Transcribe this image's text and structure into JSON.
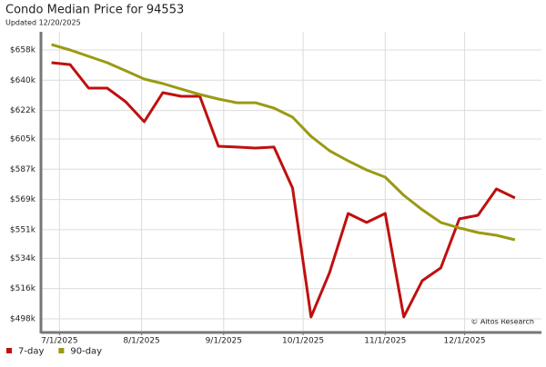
{
  "chart_data": {
    "type": "line",
    "title": "Condo Median Price for 94553",
    "subtitle": "Updated 12/20/2025",
    "annotation": "© Altos Research",
    "x": [
      "2025-06-28",
      "2025-07-05",
      "2025-07-12",
      "2025-07-19",
      "2025-07-26",
      "2025-08-02",
      "2025-08-09",
      "2025-08-16",
      "2025-08-23",
      "2025-08-30",
      "2025-09-06",
      "2025-09-13",
      "2025-09-20",
      "2025-09-27",
      "2025-10-04",
      "2025-10-11",
      "2025-10-18",
      "2025-10-25",
      "2025-11-01",
      "2025-11-08",
      "2025-11-15",
      "2025-11-22",
      "2025-11-29",
      "2025-12-06",
      "2025-12-13",
      "2025-12-20"
    ],
    "series": [
      {
        "name": "7-day",
        "color": "#bf1010",
        "values": [
          650.4,
          649.3,
          635.3,
          635.3,
          627.2,
          615.3,
          632.6,
          630.4,
          630.4,
          600.7,
          600.2,
          599.6,
          600.2,
          575.8,
          499.1,
          525.6,
          560.7,
          555.3,
          560.7,
          499.1,
          520.7,
          528.3,
          557.5,
          559.6,
          575.3,
          569.9
        ]
      },
      {
        "name": "90-day",
        "color": "#9a9a14",
        "values": [
          661.2,
          658,
          654.2,
          650.4,
          645.6,
          640.7,
          638,
          634.7,
          631.5,
          628.8,
          626.6,
          626.6,
          623.4,
          618,
          606.6,
          598,
          592,
          586.6,
          582.3,
          571.5,
          562.9,
          555.3,
          552.1,
          549.3,
          547.7,
          545
        ]
      }
    ],
    "xlim": [
      "2025-06-24",
      "2025-12-30"
    ],
    "xticks": [
      {
        "value": "2025-07-01",
        "label": "7/1/2025"
      },
      {
        "value": "2025-08-01",
        "label": "8/1/2025"
      },
      {
        "value": "2025-09-01",
        "label": "9/1/2025"
      },
      {
        "value": "2025-10-01",
        "label": "10/1/2025"
      },
      {
        "value": "2025-11-01",
        "label": "11/1/2025"
      },
      {
        "value": "2025-12-01",
        "label": "12/1/2025"
      }
    ],
    "ylim": [
      490.4,
      668.8
    ],
    "yticks": [
      {
        "value": 498,
        "label": "$498k"
      },
      {
        "value": 516,
        "label": "$516k"
      },
      {
        "value": 534,
        "label": "$534k"
      },
      {
        "value": 551,
        "label": "$551k"
      },
      {
        "value": 569,
        "label": "$569k"
      },
      {
        "value": 587,
        "label": "$587k"
      },
      {
        "value": 605,
        "label": "$605k"
      },
      {
        "value": 622,
        "label": "$622k"
      },
      {
        "value": 640,
        "label": "$640k"
      },
      {
        "value": 658,
        "label": "$658k"
      }
    ],
    "grid": true,
    "legend": "bottom-left"
  }
}
